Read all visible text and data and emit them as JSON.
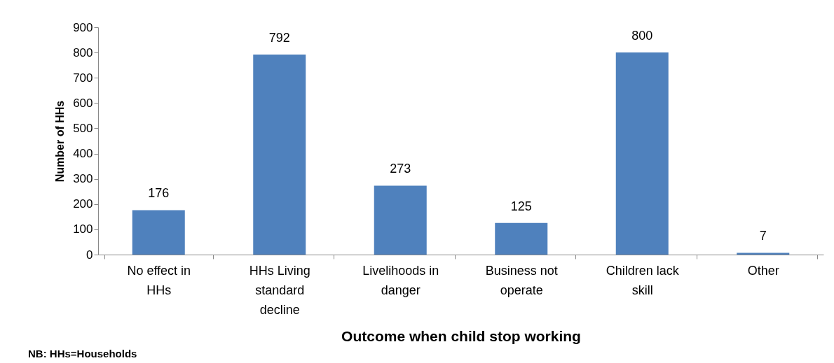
{
  "chart_data": {
    "type": "bar",
    "categories": [
      "No effect in HHs",
      "HHs Living standard decline",
      "Livelihoods in danger",
      "Business not operate",
      "Children lack skill",
      "Other"
    ],
    "values": [
      176,
      792,
      273,
      125,
      800,
      7
    ],
    "color": "#4f81bd",
    "xlabel": "Outcome when child stop working",
    "ylabel": "Number of HHs",
    "ylim": [
      0,
      900
    ],
    "yticks": [
      0,
      100,
      200,
      300,
      400,
      500,
      600,
      700,
      800,
      900
    ],
    "grid": false,
    "data_labels": true,
    "annotations": [
      "NB: HHs=Households"
    ]
  }
}
